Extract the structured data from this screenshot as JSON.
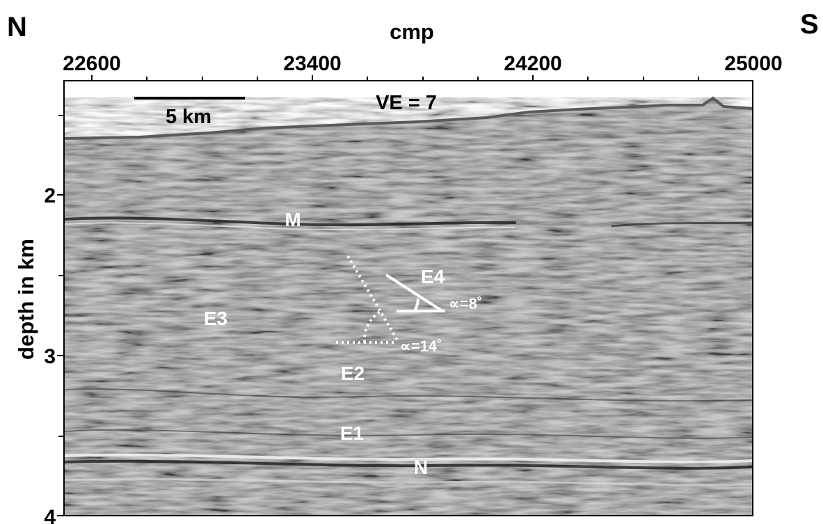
{
  "figure": {
    "direction_left": "N",
    "direction_right": "S",
    "x_axis_label": "cmp",
    "y_axis_label": "depth in km",
    "vertical_exaggeration": "VE = 7",
    "scale_bar_label": "5 km",
    "x_ticks": [
      "22600",
      "23400",
      "24200",
      "25000"
    ],
    "y_ticks": [
      "2",
      "3",
      "4"
    ],
    "horizons": [
      "M",
      "E4",
      "E3",
      "E2",
      "E1",
      "N"
    ],
    "angle_labels": [
      "∝=8˚",
      "∝=14˚"
    ]
  },
  "colors": {
    "background": "#ffffff",
    "section_gray": "#8a8a8a",
    "annotation": "#ffffff"
  }
}
